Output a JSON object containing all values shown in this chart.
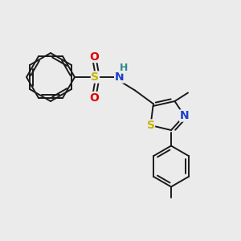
{
  "background_color": "#ebebeb",
  "bond_color": "#1a1a1a",
  "atom_colors": {
    "S": "#c8b400",
    "N": "#1c3fcc",
    "O": "#e00000",
    "H": "#2e8b8b",
    "C": "#1a1a1a"
  },
  "fig_width": 3.0,
  "fig_height": 3.0,
  "dpi": 100
}
